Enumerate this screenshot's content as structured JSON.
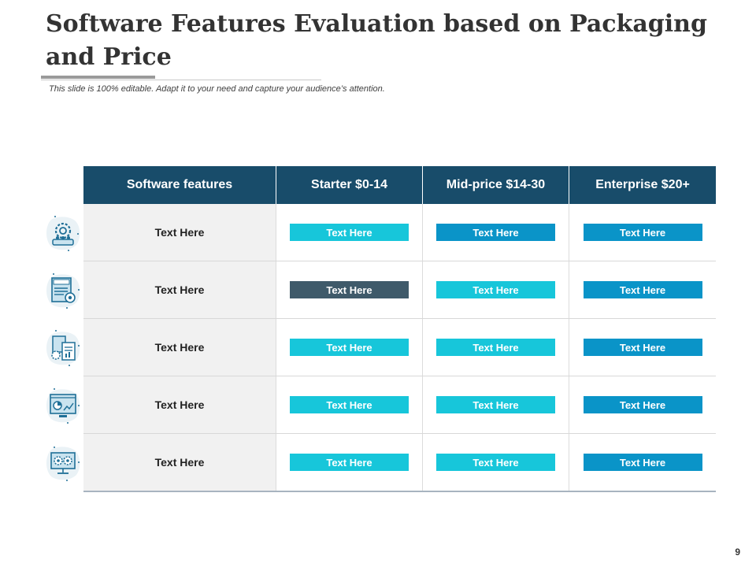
{
  "slide": {
    "title": "Software Features Evaluation based on Packaging and Price",
    "subtitle": "This slide is 100% editable. Adapt it to your need and capture your audience’s attention.",
    "page_number": "9"
  },
  "colors": {
    "header_bg": "#184c6a",
    "cyan": "#17c6da",
    "mid_blue": "#0a94c8",
    "dark_slate": "#3f5a6a",
    "feature_col_bg": "#f1f1f1"
  },
  "table": {
    "headers": [
      "Software features",
      "Starter $0-14",
      "Mid-price $14-30",
      "Enterprise $20+"
    ],
    "rows": [
      {
        "feature": "Text Here",
        "icon": "gear-team-icon",
        "cells": [
          {
            "label": "Text Here",
            "color": "#17c6da"
          },
          {
            "label": "Text Here",
            "color": "#0a94c8"
          },
          {
            "label": "Text Here",
            "color": "#0a94c8"
          }
        ]
      },
      {
        "feature": "Text Here",
        "icon": "score-report-icon",
        "cells": [
          {
            "label": "Text Here",
            "color": "#3f5a6a"
          },
          {
            "label": "Text Here",
            "color": "#17c6da"
          },
          {
            "label": "Text Here",
            "color": "#0a94c8"
          }
        ]
      },
      {
        "feature": "Text Here",
        "icon": "documents-gear-icon",
        "cells": [
          {
            "label": "Text Here",
            "color": "#17c6da"
          },
          {
            "label": "Text Here",
            "color": "#17c6da"
          },
          {
            "label": "Text Here",
            "color": "#0a94c8"
          }
        ]
      },
      {
        "feature": "Text Here",
        "icon": "dashboard-chart-icon",
        "cells": [
          {
            "label": "Text Here",
            "color": "#17c6da"
          },
          {
            "label": "Text Here",
            "color": "#17c6da"
          },
          {
            "label": "Text Here",
            "color": "#0a94c8"
          }
        ]
      },
      {
        "feature": "Text Here",
        "icon": "monitor-gears-icon",
        "cells": [
          {
            "label": "Text Here",
            "color": "#17c6da"
          },
          {
            "label": "Text Here",
            "color": "#17c6da"
          },
          {
            "label": "Text Here",
            "color": "#0a94c8"
          }
        ]
      }
    ]
  }
}
